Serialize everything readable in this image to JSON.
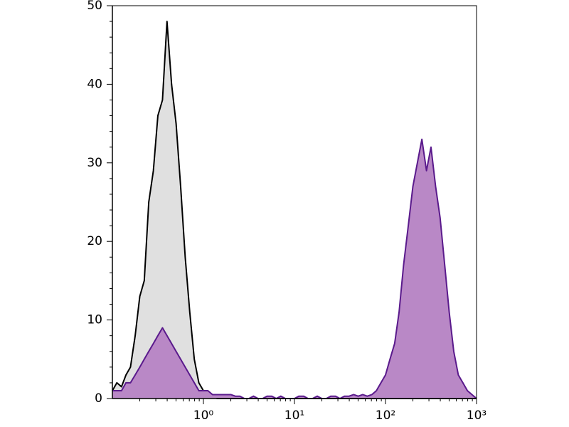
{
  "chart_data": {
    "type": "area",
    "xscale": "log",
    "xlim": [
      0.1,
      1000
    ],
    "ylim": [
      0,
      50
    ],
    "xticks": [
      {
        "value": 1,
        "label": "10⁰"
      },
      {
        "value": 10,
        "label": "10¹"
      },
      {
        "value": 100,
        "label": "10²"
      },
      {
        "value": 1000,
        "label": "10³"
      }
    ],
    "yticks": [
      0,
      10,
      20,
      30,
      40,
      50
    ],
    "grid": false,
    "x": [
      0.1,
      0.112,
      0.126,
      0.141,
      0.158,
      0.178,
      0.2,
      0.224,
      0.251,
      0.282,
      0.316,
      0.355,
      0.398,
      0.447,
      0.501,
      0.562,
      0.631,
      0.708,
      0.794,
      0.891,
      1,
      1.12,
      1.26,
      1.41,
      1.58,
      1.78,
      2,
      2.24,
      2.51,
      2.82,
      3.16,
      3.55,
      3.98,
      4.47,
      5.01,
      5.62,
      6.31,
      7.08,
      7.94,
      8.91,
      10,
      11.2,
      12.6,
      14.1,
      15.8,
      17.8,
      20,
      22.4,
      25.1,
      28.2,
      31.6,
      35.5,
      39.8,
      44.7,
      50.1,
      56.2,
      63.1,
      70.8,
      79.4,
      89.1,
      100,
      112,
      126,
      141,
      158,
      178,
      200,
      224,
      251,
      282,
      316,
      355,
      398,
      447,
      501,
      562,
      631,
      708,
      794,
      891,
      1000
    ],
    "series": [
      {
        "color": "#000000",
        "fill": "#e0e0e0",
        "values": [
          1,
          2,
          1.5,
          3,
          4,
          8,
          13,
          15,
          25,
          29,
          36,
          38,
          48,
          40,
          35,
          27,
          18,
          11,
          5,
          2,
          1,
          0.5,
          0.3,
          0,
          0,
          0,
          0,
          0,
          0,
          0,
          0,
          0,
          0,
          0,
          0,
          0,
          0,
          0,
          0,
          0,
          0,
          0,
          0,
          0,
          0,
          0,
          0,
          0,
          0,
          0,
          0,
          0,
          0,
          0,
          0,
          0,
          0,
          0,
          0,
          0,
          0,
          0,
          0,
          0,
          0,
          0,
          0,
          0,
          0,
          0,
          0,
          0,
          0,
          0,
          0,
          0,
          0,
          0,
          0,
          0,
          0
        ]
      },
      {
        "color": "#5a1a8c",
        "fill": "#b988c6",
        "values": [
          1,
          1,
          1,
          2,
          2,
          3,
          4,
          5,
          6,
          7,
          8,
          9,
          8,
          7,
          6,
          5,
          4,
          3,
          2,
          1,
          1,
          1,
          0.5,
          0.5,
          0.5,
          0.5,
          0.5,
          0.3,
          0.3,
          0,
          0,
          0.3,
          0,
          0,
          0.3,
          0.3,
          0,
          0.3,
          0,
          0,
          0,
          0.3,
          0.3,
          0,
          0,
          0.3,
          0,
          0,
          0.3,
          0.3,
          0,
          0.3,
          0.3,
          0.5,
          0.3,
          0.5,
          0.3,
          0.5,
          1,
          2,
          3,
          5,
          7,
          11,
          17,
          22,
          27,
          30,
          33,
          29,
          32,
          27,
          23,
          17,
          11,
          6,
          3,
          2,
          1,
          0.5,
          0
        ]
      }
    ]
  }
}
